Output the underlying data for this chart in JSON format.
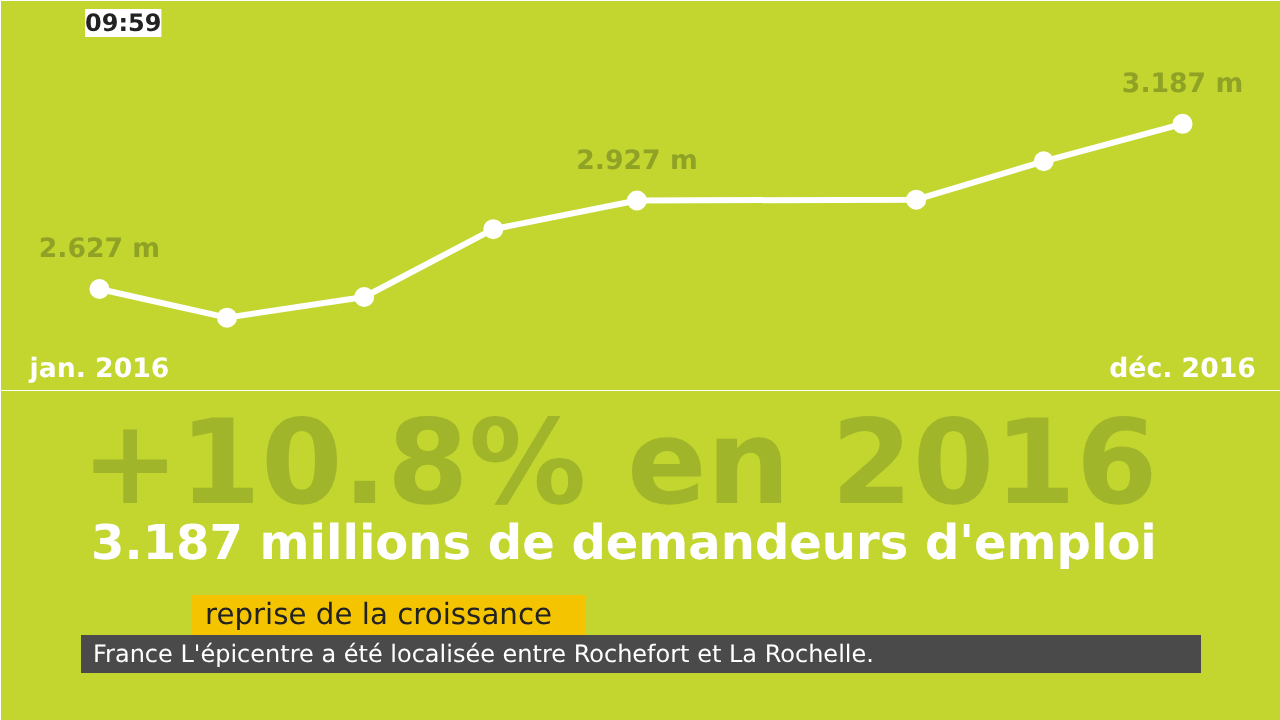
{
  "chart_data": {
    "type": "line",
    "title": "+10.8% en 2016",
    "subtitle": "3.187 millions de demandeurs d'emploi",
    "x": [
      "2016-01-01",
      "2016-02-10",
      "2016-03-22",
      "2016-05-01",
      "2016-06-15",
      "2016-09-10",
      "2016-10-19",
      "2016-12-01"
    ],
    "xlim": [
      "2015-12-01",
      "2017-01-01"
    ],
    "xticks": [
      {
        "value": "2016-01-01",
        "label": "jan. 2016"
      },
      {
        "value": "2016-12-01",
        "label": "déc. 2016"
      }
    ],
    "tick_labels": "x",
    "grid": false,
    "marker": "circle",
    "line_style": "solid",
    "series": [
      {
        "color": "#ffffff",
        "values": [
          2.627,
          2.53,
          2.6,
          2.83,
          2.927,
          2.93,
          3.06,
          3.187
        ],
        "value_labels": [
          "2.627 m",
          null,
          null,
          null,
          "2.927 m",
          null,
          null,
          "3.187 m"
        ]
      }
    ],
    "annotations": [
      "09:59",
      "reprise de la croissance",
      "France  L'épicentre a été localisée entre Rochefort et La Rochelle."
    ]
  }
}
